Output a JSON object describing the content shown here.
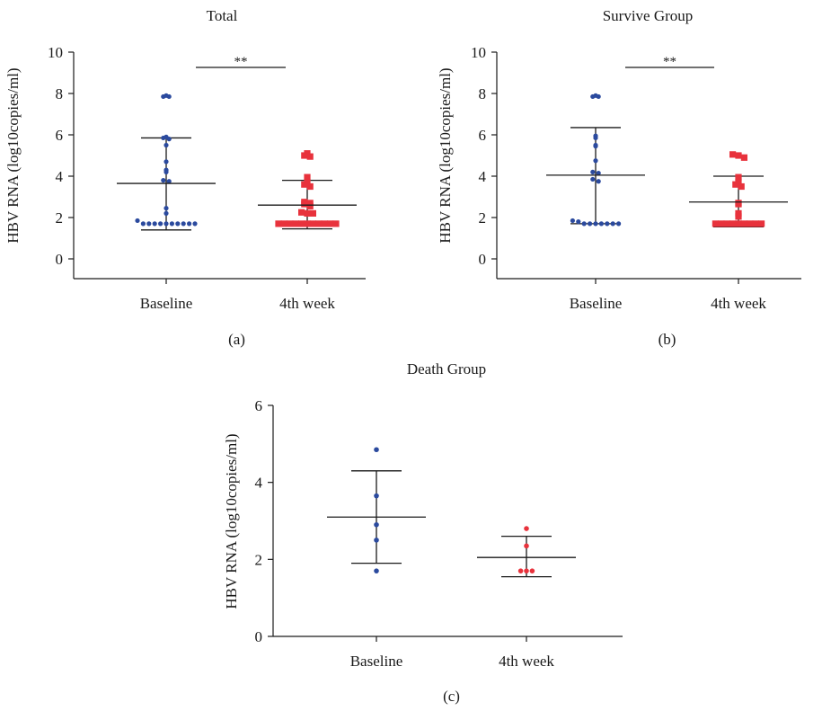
{
  "charts": [
    {
      "panel_label": "(a)",
      "chart_data": {
        "type": "scatter",
        "title": "Total",
        "ylabel": "HBV RNA (log10copies/ml)",
        "xlabel": "",
        "categories": [
          "Baseline",
          "4th week"
        ],
        "ylim": [
          0,
          10
        ],
        "yticks": [
          0,
          2,
          4,
          6,
          8,
          10
        ],
        "grid": false,
        "significance": "**",
        "series": [
          {
            "color": "#2b4a9e",
            "marker": "circle",
            "points": [
              7.85,
              7.85,
              7.9,
              5.9,
              5.85,
              5.8,
              5.5,
              4.7,
              4.3,
              4.2,
              3.8,
              3.75,
              2.45,
              2.2,
              1.85,
              1.7,
              1.7,
              1.7,
              1.7,
              1.7,
              1.7,
              1.7,
              1.7,
              1.7,
              1.7
            ],
            "mean": 3.65,
            "sd_low": 1.4,
            "sd_high": 5.85
          },
          {
            "color": "#e8323c",
            "marker": "square",
            "points": [
              5.1,
              5.0,
              4.95,
              3.95,
              3.7,
              3.6,
              3.5,
              2.75,
              2.7,
              2.65,
              2.55,
              2.25,
              2.2,
              2.2,
              1.7,
              1.7,
              1.7,
              1.7,
              1.7,
              1.7,
              1.7,
              1.7,
              1.7,
              1.7,
              1.7
            ],
            "mean": 2.6,
            "sd_low": 1.45,
            "sd_high": 3.8
          }
        ]
      }
    },
    {
      "panel_label": "(b)",
      "chart_data": {
        "type": "scatter",
        "title": "Survive Group",
        "ylabel": "HBV RNA (log10copies/ml)",
        "xlabel": "",
        "categories": [
          "Baseline",
          "4th week"
        ],
        "ylim": [
          0,
          10
        ],
        "yticks": [
          0,
          2,
          4,
          6,
          8,
          10
        ],
        "grid": false,
        "significance": "**",
        "series": [
          {
            "color": "#2b4a9e",
            "marker": "circle",
            "points": [
              7.85,
              7.9,
              7.85,
              5.95,
              5.85,
              5.5,
              5.45,
              4.75,
              4.2,
              4.15,
              3.85,
              3.75,
              1.85,
              1.8,
              1.7,
              1.7,
              1.7,
              1.7,
              1.7,
              1.7,
              1.7
            ],
            "mean": 4.05,
            "sd_low": 1.7,
            "sd_high": 6.35
          },
          {
            "color": "#e8323c",
            "marker": "square",
            "points": [
              5.05,
              5.0,
              4.9,
              3.95,
              3.7,
              3.6,
              3.5,
              2.7,
              2.65,
              2.2,
              2.05,
              1.7,
              1.7,
              1.7,
              1.7,
              1.7,
              1.7,
              1.7,
              1.7,
              1.7
            ],
            "mean": 2.75,
            "sd_low": 1.55,
            "sd_high": 4.0
          }
        ]
      }
    },
    {
      "panel_label": "(c)",
      "chart_data": {
        "type": "scatter",
        "title": "Death Group",
        "ylabel": "HBV RNA (log10copies/ml)",
        "xlabel": "",
        "categories": [
          "Baseline",
          "4th week"
        ],
        "ylim": [
          0,
          6
        ],
        "yticks": [
          0,
          2,
          4,
          6
        ],
        "grid": false,
        "significance": "",
        "series": [
          {
            "color": "#2b4a9e",
            "marker": "circle",
            "points": [
              4.85,
              3.65,
              2.9,
              2.5,
              1.7
            ],
            "mean": 3.1,
            "sd_low": 1.9,
            "sd_high": 4.3
          },
          {
            "color": "#e8323c",
            "marker": "circle",
            "points": [
              2.8,
              2.35,
              1.7,
              1.7,
              1.7
            ],
            "mean": 2.05,
            "sd_low": 1.55,
            "sd_high": 2.6
          }
        ]
      }
    }
  ]
}
